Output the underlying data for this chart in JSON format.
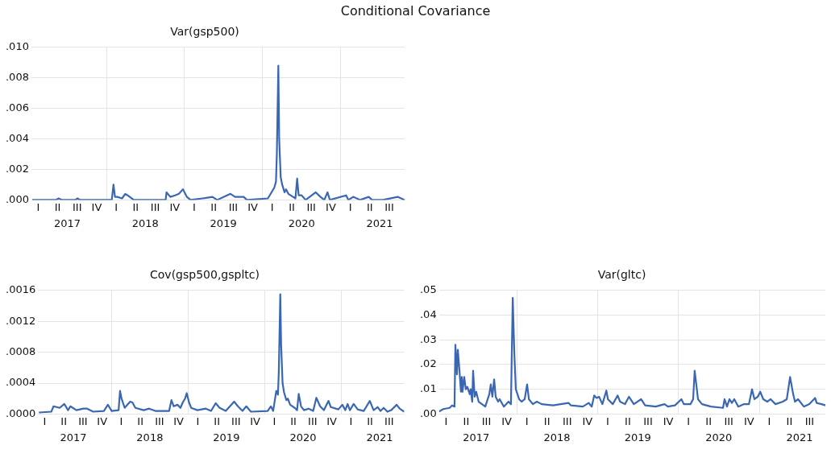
{
  "chart_data": [
    {
      "type": "other",
      "title": "Conditional Covariance"
    },
    {
      "type": "line",
      "title": "Var(gsp500)",
      "grid": true,
      "color": "#3a67b3",
      "xlim": [
        "2017-01-15",
        "2021-10-27"
      ],
      "xticks": [
        {
          "value": "2017-07-02",
          "label": "2017"
        },
        {
          "value": "2018-01-01",
          "label": null
        },
        {
          "value": "2018-07-02",
          "label": "2018"
        },
        {
          "value": "2019-01-01",
          "label": null
        },
        {
          "value": "2019-07-02",
          "label": "2019"
        },
        {
          "value": "2020-01-01",
          "label": null
        },
        {
          "value": "2020-07-02",
          "label": "2020"
        },
        {
          "value": "2021-01-01",
          "label": null
        },
        {
          "value": "2021-07-02",
          "label": "2021"
        }
      ],
      "annotations": [
        "I",
        "II",
        "III",
        "IV",
        "I",
        "II",
        "III",
        "IV",
        "I",
        "II",
        "III",
        "IV",
        "I",
        "II",
        "III",
        "IV",
        "I",
        "II",
        "III"
      ],
      "ylim": [
        0,
        0.01
      ],
      "yticks": [
        {
          "value": 0,
          "label": ".000"
        },
        {
          "value": 0.002,
          "label": ".002"
        },
        {
          "value": 0.004,
          "label": ".004"
        },
        {
          "value": 0.006,
          "label": ".006"
        },
        {
          "value": 0.008,
          "label": ".008"
        },
        {
          "value": 0.01,
          "label": ".010"
        }
      ],
      "x": [
        "2017-01-19",
        "2017-05-09",
        "2017-05-23",
        "2017-06-07",
        "2017-08-08",
        "2017-08-19",
        "2017-08-30",
        "2018-01-26",
        "2018-02-03",
        "2018-02-10",
        "2018-02-21",
        "2018-03-15",
        "2018-03-30",
        "2018-04-10",
        "2018-05-09",
        "2018-10-05",
        "2018-10-09",
        "2018-10-27",
        "2018-11-18",
        "2018-12-06",
        "2018-12-25",
        "2019-01-12",
        "2019-01-30",
        "2019-03-26",
        "2019-05-12",
        "2019-06-03",
        "2019-08-04",
        "2019-08-26",
        "2019-10-05",
        "2019-10-20",
        "2020-01-26",
        "2020-02-25",
        "2020-03-04",
        "2020-03-08",
        "2020-03-15",
        "2020-03-19",
        "2020-03-26",
        "2020-04-02",
        "2020-04-13",
        "2020-04-20",
        "2020-05-01",
        "2020-05-23",
        "2020-06-03",
        "2020-06-11",
        "2020-06-18",
        "2020-07-02",
        "2020-07-21",
        "2020-09-06",
        "2020-09-28",
        "2020-10-16",
        "2020-10-31",
        "2020-11-11",
        "2021-01-26",
        "2021-02-06",
        "2021-02-28",
        "2021-04-02",
        "2021-05-12",
        "2021-05-27",
        "2021-07-17",
        "2021-09-24",
        "2021-10-27"
      ],
      "values": [
        0,
        0,
        0.0001,
        0,
        0,
        0.0001,
        0,
        0,
        0.001,
        0.0002,
        0.0002,
        0.0001,
        0.0004,
        0.0003,
        0,
        0,
        0.0005,
        0.0002,
        0.0003,
        0.0004,
        0.0007,
        0.0002,
        0,
        0.0001,
        0.0002,
        0,
        0.0004,
        0.0002,
        0.0002,
        0,
        0.0001,
        0.0008,
        0.0012,
        0.003,
        0.0088,
        0.004,
        0.0015,
        0.001,
        0.0005,
        0.0007,
        0.0004,
        0.0002,
        0.0001,
        0.0014,
        0.0003,
        0.0003,
        0,
        0.0005,
        0.0002,
        0,
        0.0005,
        0,
        0.0003,
        0,
        0.0002,
        0,
        0.0002,
        0,
        0,
        0.0002,
        0
      ]
    },
    {
      "type": "line",
      "title": "Cov(gsp500,gspltc)",
      "grid": true,
      "color": "#3a67b3",
      "xlim": [
        "2017-01-15",
        "2021-10-27"
      ],
      "xticks": [
        {
          "value": "2017-07-02",
          "label": "2017"
        },
        {
          "value": "2018-01-01",
          "label": null
        },
        {
          "value": "2018-07-02",
          "label": "2018"
        },
        {
          "value": "2019-01-01",
          "label": null
        },
        {
          "value": "2019-07-02",
          "label": "2019"
        },
        {
          "value": "2020-01-01",
          "label": null
        },
        {
          "value": "2020-07-02",
          "label": "2020"
        },
        {
          "value": "2021-01-01",
          "label": null
        },
        {
          "value": "2021-07-02",
          "label": "2021"
        }
      ],
      "annotations": [
        "I",
        "II",
        "III",
        "IV",
        "I",
        "II",
        "III",
        "IV",
        "I",
        "II",
        "III",
        "IV",
        "I",
        "II",
        "III",
        "IV",
        "I",
        "II",
        "III"
      ],
      "ylim": [
        0,
        0.0016
      ],
      "yticks": [
        {
          "value": 0,
          "label": ".0000"
        },
        {
          "value": 0.0004,
          "label": ".0004"
        },
        {
          "value": 0.0008,
          "label": ".0008"
        },
        {
          "value": 0.0012,
          "label": ".0012"
        },
        {
          "value": 0.0016,
          "label": ".0016"
        }
      ],
      "x": [
        "2017-01-19",
        "2017-03-19",
        "2017-03-30",
        "2017-04-28",
        "2017-05-20",
        "2017-06-07",
        "2017-06-18",
        "2017-07-17",
        "2017-08-19",
        "2017-09-06",
        "2017-10-05",
        "2017-11-25",
        "2017-12-14",
        "2018-01-01",
        "2018-02-03",
        "2018-02-10",
        "2018-02-17",
        "2018-03-04",
        "2018-03-30",
        "2018-04-10",
        "2018-04-24",
        "2018-06-03",
        "2018-06-29",
        "2018-07-28",
        "2018-10-02",
        "2018-10-13",
        "2018-10-24",
        "2018-11-11",
        "2018-11-25",
        "2018-12-06",
        "2018-12-17",
        "2018-12-25",
        "2019-01-05",
        "2019-01-15",
        "2019-02-14",
        "2019-03-26",
        "2019-04-20",
        "2019-05-12",
        "2019-05-31",
        "2019-06-29",
        "2019-08-08",
        "2019-08-26",
        "2019-09-17",
        "2019-10-05",
        "2019-10-27",
        "2020-01-15",
        "2020-01-30",
        "2020-02-10",
        "2020-02-25",
        "2020-03-04",
        "2020-03-08",
        "2020-03-15",
        "2020-03-19",
        "2020-03-26",
        "2020-04-02",
        "2020-04-13",
        "2020-04-20",
        "2020-05-01",
        "2020-05-23",
        "2020-06-03",
        "2020-06-11",
        "2020-06-22",
        "2020-07-06",
        "2020-07-28",
        "2020-08-19",
        "2020-09-03",
        "2020-09-21",
        "2020-10-09",
        "2020-10-31",
        "2020-11-11",
        "2020-12-17",
        "2021-01-05",
        "2021-01-19",
        "2021-01-30",
        "2021-02-10",
        "2021-02-28",
        "2021-03-19",
        "2021-04-17",
        "2021-05-16",
        "2021-06-03",
        "2021-06-22",
        "2021-07-06",
        "2021-07-21",
        "2021-08-08",
        "2021-08-26",
        "2021-09-21",
        "2021-10-05",
        "2021-10-27"
      ],
      "values": [
        2e-05,
        3e-05,
        0.0001,
        8e-05,
        0.00013,
        5e-05,
        0.0001,
        5e-05,
        7e-05,
        7e-05,
        3e-05,
        4e-05,
        0.00012,
        4e-05,
        5e-05,
        0.0003,
        0.0002,
        8e-05,
        0.00016,
        0.00015,
        8e-05,
        5e-05,
        7e-05,
        4e-05,
        4e-05,
        0.00018,
        0.0001,
        0.00012,
        8e-05,
        0.00015,
        0.0002,
        0.00027,
        0.00015,
        8e-05,
        5e-05,
        7e-05,
        4e-05,
        0.00014,
        8e-05,
        4e-05,
        0.00016,
        0.0001,
        4e-05,
        0.0001,
        3e-05,
        4e-05,
        0.0001,
        4e-05,
        0.0003,
        0.00025,
        0.00055,
        0.00155,
        0.0009,
        0.0004,
        0.00028,
        0.00018,
        0.0002,
        0.00012,
        8e-05,
        5e-05,
        0.00026,
        0.0001,
        5e-05,
        7e-05,
        4e-05,
        0.00021,
        0.0001,
        5e-05,
        0.00017,
        9e-05,
        6e-05,
        0.00012,
        5e-05,
        0.00013,
        5e-05,
        0.00013,
        6e-05,
        4e-05,
        0.00017,
        5e-05,
        9e-05,
        4e-05,
        8e-05,
        3e-05,
        5e-05,
        0.00012,
        7e-05,
        3e-05
      ]
    },
    {
      "type": "line",
      "title": "Var(gltc)",
      "grid": true,
      "color": "#3a67b3",
      "xlim": [
        "2017-01-15",
        "2021-10-27"
      ],
      "xticks": [
        {
          "value": "2017-07-02",
          "label": "2017"
        },
        {
          "value": "2018-01-01",
          "label": null
        },
        {
          "value": "2018-07-02",
          "label": "2018"
        },
        {
          "value": "2019-01-01",
          "label": null
        },
        {
          "value": "2019-07-02",
          "label": "2019"
        },
        {
          "value": "2020-01-01",
          "label": null
        },
        {
          "value": "2020-07-02",
          "label": "2020"
        },
        {
          "value": "2021-01-01",
          "label": null
        },
        {
          "value": "2021-07-02",
          "label": "2021"
        }
      ],
      "annotations": [
        "I",
        "II",
        "III",
        "IV",
        "I",
        "II",
        "III",
        "IV",
        "I",
        "II",
        "III",
        "IV",
        "I",
        "II",
        "III",
        "IV",
        "I",
        "II",
        "III"
      ],
      "ylim": [
        0,
        0.05
      ],
      "yticks": [
        {
          "value": 0,
          "label": ".00"
        },
        {
          "value": 0.01,
          "label": ".01"
        },
        {
          "value": 0.02,
          "label": ".02"
        },
        {
          "value": 0.03,
          "label": ".03"
        },
        {
          "value": 0.04,
          "label": ".04"
        },
        {
          "value": 0.05,
          "label": ".05"
        }
      ],
      "x": [
        "2017-01-15",
        "2017-02-03",
        "2017-03-04",
        "2017-03-15",
        "2017-03-26",
        "2017-03-30",
        "2017-04-06",
        "2017-04-10",
        "2017-04-17",
        "2017-04-24",
        "2017-04-28",
        "2017-05-01",
        "2017-05-09",
        "2017-05-16",
        "2017-05-23",
        "2017-06-03",
        "2017-06-07",
        "2017-06-14",
        "2017-06-18",
        "2017-06-25",
        "2017-07-02",
        "2017-07-13",
        "2017-08-12",
        "2017-08-30",
        "2017-09-06",
        "2017-09-13",
        "2017-09-21",
        "2017-09-28",
        "2017-10-09",
        "2017-10-16",
        "2017-11-04",
        "2017-11-25",
        "2017-12-06",
        "2017-12-14",
        "2017-12-21",
        "2017-12-28",
        "2018-01-12",
        "2018-01-23",
        "2018-02-06",
        "2018-02-17",
        "2018-02-25",
        "2018-03-15",
        "2018-04-02",
        "2018-04-24",
        "2018-06-14",
        "2018-08-23",
        "2018-09-03",
        "2018-10-27",
        "2018-11-22",
        "2018-12-06",
        "2018-12-17",
        "2018-12-28",
        "2019-01-08",
        "2019-01-23",
        "2019-02-10",
        "2019-02-17",
        "2019-03-11",
        "2019-04-02",
        "2019-04-13",
        "2019-05-05",
        "2019-05-23",
        "2019-06-14",
        "2019-07-17",
        "2019-08-04",
        "2019-09-21",
        "2019-10-31",
        "2019-11-15",
        "2019-12-17",
        "2020-01-15",
        "2020-01-26",
        "2020-02-25",
        "2020-03-08",
        "2020-03-15",
        "2020-03-30",
        "2020-04-17",
        "2020-05-27",
        "2020-07-21",
        "2020-07-28",
        "2020-08-08",
        "2020-08-19",
        "2020-08-30",
        "2020-09-10",
        "2020-09-28",
        "2020-10-24",
        "2020-11-15",
        "2020-11-29",
        "2020-12-10",
        "2020-12-25",
        "2021-01-05",
        "2021-01-19",
        "2021-02-06",
        "2021-02-21",
        "2021-03-15",
        "2021-04-17",
        "2021-05-05",
        "2021-05-20",
        "2021-06-03",
        "2021-06-11",
        "2021-06-25",
        "2021-07-21",
        "2021-08-15",
        "2021-09-10",
        "2021-09-17",
        "2021-10-09",
        "2021-10-27"
      ],
      "values": [
        0.001,
        0.002,
        0.0025,
        0.0035,
        0.003,
        0.028,
        0.016,
        0.026,
        0.018,
        0.009,
        0.015,
        0.009,
        0.015,
        0.01,
        0.011,
        0.008,
        0.01,
        0.005,
        0.0175,
        0.007,
        0.009,
        0.005,
        0.003,
        0.008,
        0.012,
        0.007,
        0.014,
        0.007,
        0.005,
        0.006,
        0.003,
        0.005,
        0.004,
        0.047,
        0.025,
        0.01,
        0.006,
        0.005,
        0.006,
        0.012,
        0.006,
        0.004,
        0.005,
        0.004,
        0.0035,
        0.0045,
        0.0035,
        0.003,
        0.0045,
        0.003,
        0.0075,
        0.0065,
        0.007,
        0.004,
        0.0095,
        0.006,
        0.004,
        0.0075,
        0.005,
        0.004,
        0.007,
        0.004,
        0.006,
        0.0035,
        0.003,
        0.004,
        0.003,
        0.0035,
        0.006,
        0.004,
        0.004,
        0.006,
        0.0175,
        0.006,
        0.004,
        0.003,
        0.0025,
        0.006,
        0.003,
        0.006,
        0.0045,
        0.006,
        0.003,
        0.004,
        0.004,
        0.01,
        0.006,
        0.007,
        0.009,
        0.006,
        0.005,
        0.006,
        0.004,
        0.005,
        0.006,
        0.015,
        0.008,
        0.005,
        0.006,
        0.003,
        0.004,
        0.0065,
        0.0045,
        0.004,
        0.0035
      ]
    }
  ]
}
